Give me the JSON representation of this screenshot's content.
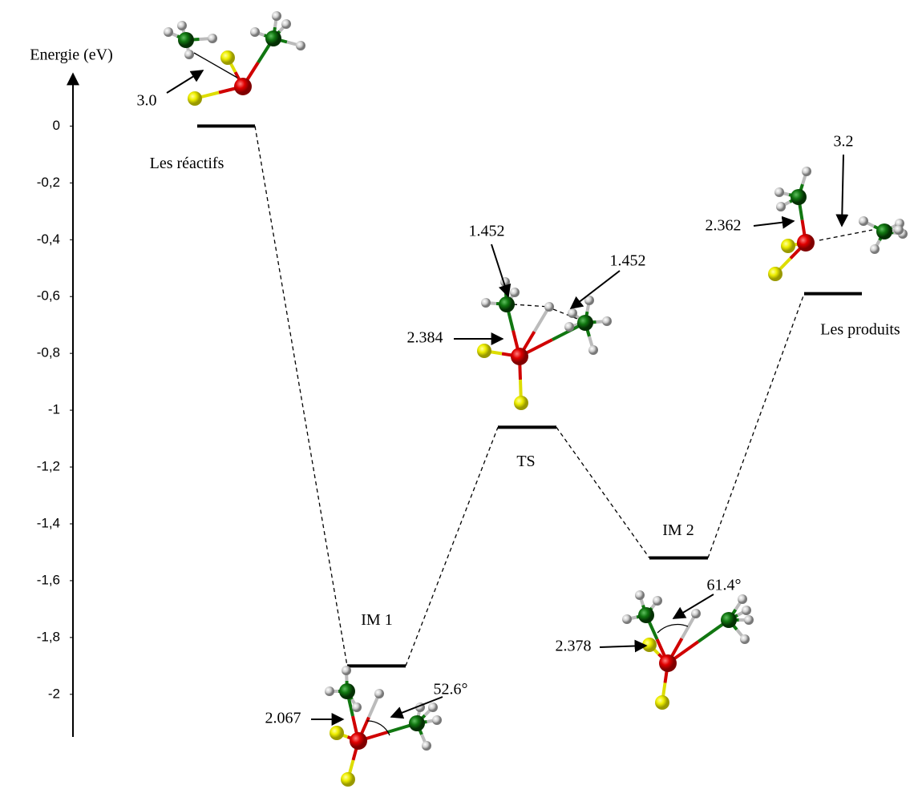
{
  "chart_data": {
    "type": "profile",
    "y_label": "Energie (eV)",
    "categories": [
      "Les réactifs",
      "IM 1",
      "TS",
      "IM 2",
      "Les produits"
    ],
    "values": [
      0,
      -1.9,
      -1.06,
      -1.52,
      -0.59
    ],
    "color": "#000000",
    "ylim": [
      -2.15,
      0.19
    ],
    "yticks": [
      0,
      {
        "value": -0.2,
        "label": "-0,2"
      },
      {
        "value": -0.4,
        "label": "-0,4"
      },
      {
        "value": -0.6,
        "label": "-0,6"
      },
      {
        "value": -0.8,
        "label": "-0,8"
      },
      -1,
      {
        "value": -1.2,
        "label": "-1,2"
      },
      {
        "value": -1.4,
        "label": "-1,4"
      },
      {
        "value": -1.6,
        "label": "-1,6"
      },
      {
        "value": -1.8,
        "label": "-1,8"
      },
      -2
    ],
    "annotations": [
      "3.0",
      "1.452",
      "1.452",
      "2.384",
      "2.067",
      "52.6°",
      "2.378",
      "61.4°",
      "3.2",
      "2.362"
    ]
  }
}
